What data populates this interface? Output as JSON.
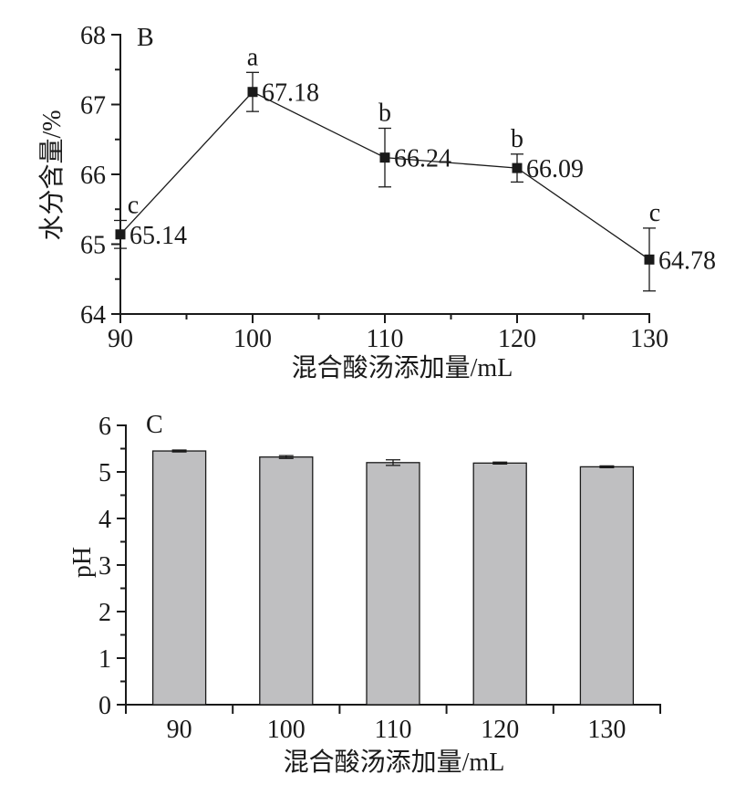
{
  "chart_data": [
    {
      "type": "line",
      "panel_label": "B",
      "xlabel": "混合酸汤添加量/mL",
      "ylabel": "水分含量/%",
      "x": [
        90,
        100,
        110,
        120,
        130
      ],
      "x_tick_labels": [
        "90",
        "100",
        "110",
        "120",
        "130"
      ],
      "xlim": [
        90,
        130
      ],
      "ylim": [
        64,
        68
      ],
      "y_tick_labels": [
        "64",
        "65",
        "66",
        "67",
        "68"
      ],
      "values": [
        65.14,
        67.18,
        66.24,
        66.09,
        64.78
      ],
      "errors": [
        0.2,
        0.28,
        0.42,
        0.2,
        0.45
      ],
      "value_labels": [
        "65.14",
        "67.18",
        "66.24",
        "66.09",
        "64.78"
      ],
      "significance_letters": [
        "c",
        "a",
        "b",
        "b",
        "c"
      ],
      "grid": false
    },
    {
      "type": "bar",
      "panel_label": "C",
      "xlabel": "混合酸汤添加量/mL",
      "ylabel": "pH",
      "categories": [
        "90",
        "100",
        "110",
        "120",
        "130"
      ],
      "values": [
        5.45,
        5.32,
        5.2,
        5.19,
        5.11
      ],
      "errors": [
        0.02,
        0.03,
        0.06,
        0.02,
        0.02
      ],
      "ylim": [
        0,
        6
      ],
      "y_tick_labels": [
        "0",
        "1",
        "2",
        "3",
        "4",
        "5",
        "6"
      ],
      "grid": false
    }
  ]
}
